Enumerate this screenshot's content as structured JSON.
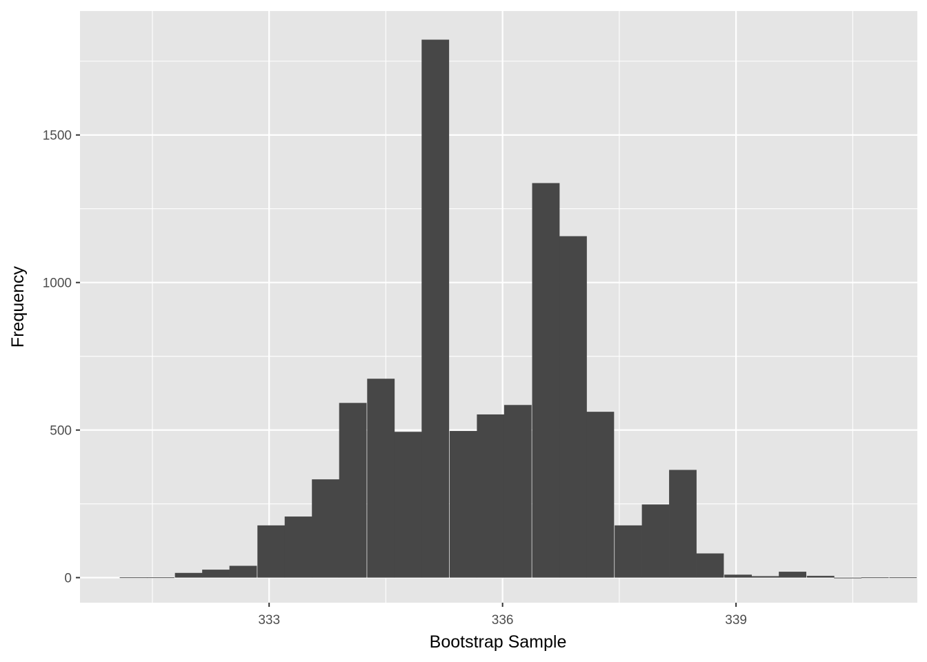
{
  "chart_data": {
    "type": "bar",
    "xlabel": "Bootstrap Sample",
    "ylabel": "Frequency",
    "xlim": [
      330.57,
      341.33
    ],
    "ylim": [
      -85,
      1920
    ],
    "x_ticks": [
      333,
      336,
      339
    ],
    "x_tick_labels": [
      "333",
      "336",
      "339"
    ],
    "x_minor_ticks": [
      331.5,
      334.5,
      337.5,
      340.5
    ],
    "y_ticks": [
      0,
      500,
      1000,
      1500
    ],
    "y_tick_labels": [
      "0",
      "500",
      "1000",
      "1500"
    ],
    "y_minor_ticks": [
      250,
      750,
      1250,
      1750
    ],
    "grid": true,
    "bin_width": 0.353,
    "bins": [
      {
        "x0": 331.08,
        "value": 1
      },
      {
        "x0": 331.43,
        "value": 1
      },
      {
        "x0": 331.79,
        "value": 16
      },
      {
        "x0": 332.14,
        "value": 27
      },
      {
        "x0": 332.49,
        "value": 40
      },
      {
        "x0": 332.85,
        "value": 177
      },
      {
        "x0": 333.2,
        "value": 207
      },
      {
        "x0": 333.55,
        "value": 333
      },
      {
        "x0": 333.9,
        "value": 592
      },
      {
        "x0": 334.26,
        "value": 674
      },
      {
        "x0": 334.61,
        "value": 494
      },
      {
        "x0": 334.96,
        "value": 1823
      },
      {
        "x0": 335.32,
        "value": 497
      },
      {
        "x0": 335.67,
        "value": 553
      },
      {
        "x0": 336.02,
        "value": 585
      },
      {
        "x0": 336.38,
        "value": 1337
      },
      {
        "x0": 336.73,
        "value": 1157
      },
      {
        "x0": 337.08,
        "value": 562
      },
      {
        "x0": 337.44,
        "value": 177
      },
      {
        "x0": 337.79,
        "value": 248
      },
      {
        "x0": 338.14,
        "value": 365
      },
      {
        "x0": 338.49,
        "value": 82
      },
      {
        "x0": 338.85,
        "value": 10
      },
      {
        "x0": 339.2,
        "value": 5
      },
      {
        "x0": 339.55,
        "value": 20
      },
      {
        "x0": 339.91,
        "value": 6
      },
      {
        "x0": 340.26,
        "value": 0
      },
      {
        "x0": 340.61,
        "value": 1
      },
      {
        "x0": 340.97,
        "value": 1
      }
    ],
    "colors": {
      "panel": "#e5e5e5",
      "grid": "#ffffff",
      "bar": "#474747",
      "tick": "#333333"
    }
  }
}
